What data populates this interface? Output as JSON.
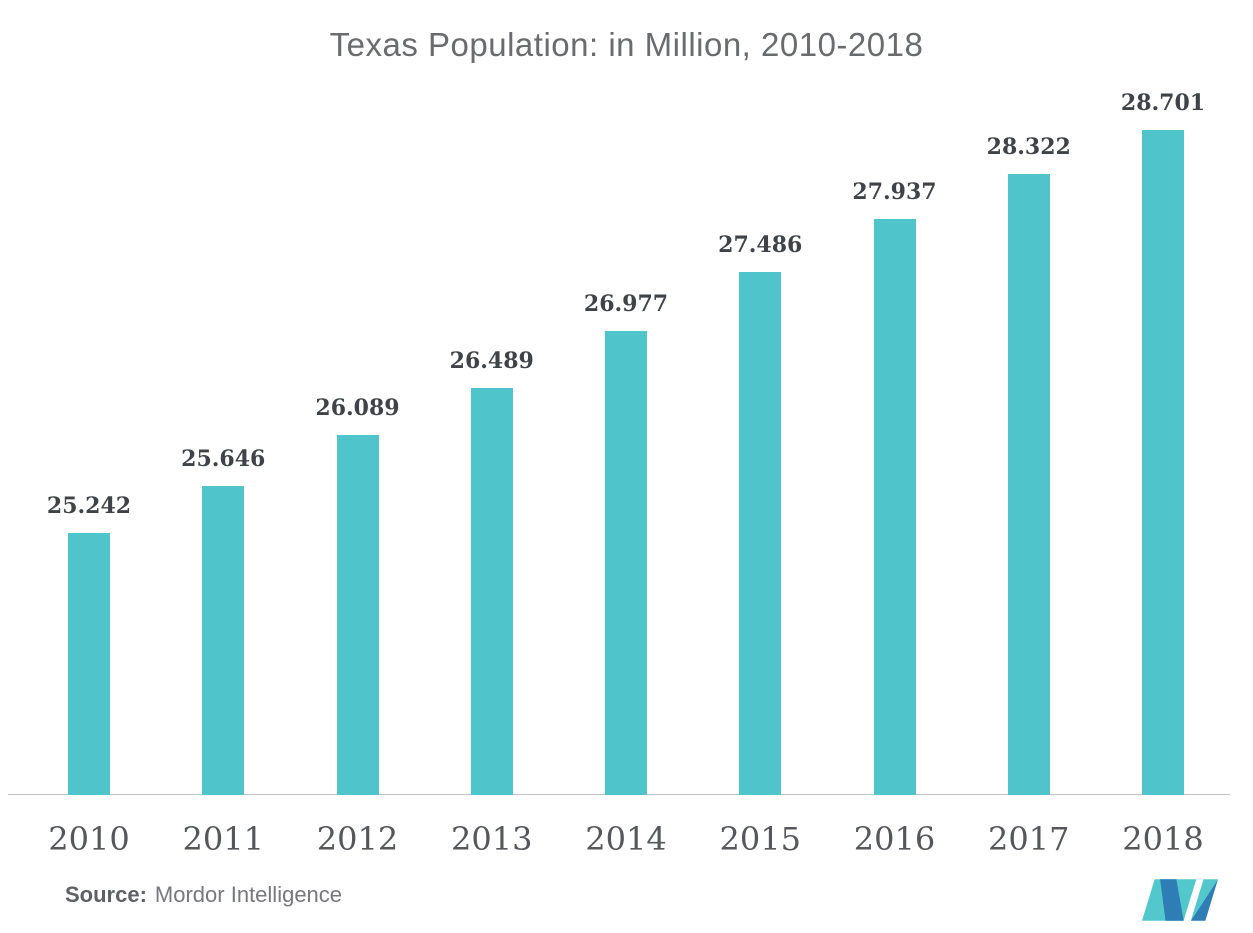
{
  "title": "Texas Population: in Million, 2010-2018",
  "chart_data": {
    "type": "bar",
    "title": "Texas Population: in Million, 2010-2018",
    "categories": [
      "2010",
      "2011",
      "2012",
      "2013",
      "2014",
      "2015",
      "2016",
      "2017",
      "2018"
    ],
    "values": [
      25.242,
      25.646,
      26.089,
      26.489,
      26.977,
      27.486,
      27.937,
      28.322,
      28.701
    ],
    "value_labels": [
      "25.242",
      "25.646",
      "26.089",
      "26.489",
      "26.977",
      "27.486",
      "27.937",
      "28.322",
      "28.701"
    ],
    "xlabel": "",
    "ylabel": "",
    "ylim": [
      23,
      29
    ],
    "grid": false,
    "legend": "none",
    "bar_color": "#4FC4CA"
  },
  "footer": {
    "source_label": "Source:",
    "source_value": "Mordor Intelligence"
  },
  "logo": {
    "name": "mordor-intelligence-logo",
    "teal": "#52C8CD",
    "blue": "#2E7DB5"
  },
  "colors": {
    "bar": "#4FC4CA",
    "title_text": "#6A6B6D",
    "value_text": "#3F4347",
    "axis_text": "#55575A",
    "axis_line": "#C2C3C5"
  }
}
